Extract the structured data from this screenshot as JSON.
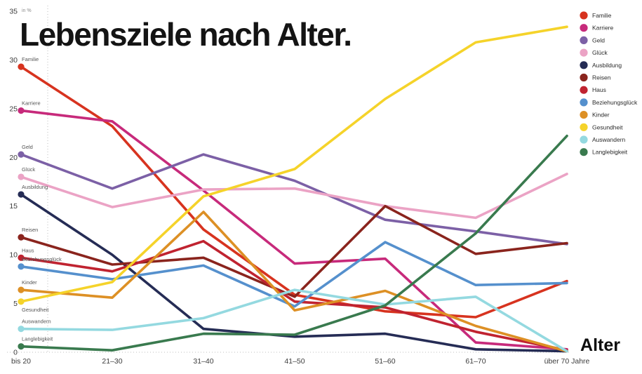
{
  "title": "Lebensziele nach Alter.",
  "chart_data": {
    "type": "line",
    "title": "Lebensziele nach Alter.",
    "xlabel": "Alter",
    "ylabel": "in %",
    "categories": [
      "bis 20",
      "21–30",
      "31–40",
      "41–50",
      "51–60",
      "61–70",
      "über 70 Jahre"
    ],
    "ylim": [
      0,
      35
    ],
    "yticks": [
      0,
      5,
      10,
      15,
      20,
      25,
      30,
      35
    ],
    "grid": "dotted y-axis line and dotted baseline only",
    "legend_position": "top-right",
    "marker": "dot at first point of each line",
    "series": [
      {
        "name": "Familie",
        "color": "#d7331f",
        "values": [
          29.3,
          23.2,
          12.6,
          5.9,
          4.2,
          3.6,
          7.3
        ]
      },
      {
        "name": "Karriere",
        "color": "#c72a7b",
        "values": [
          24.8,
          23.7,
          16.6,
          9.1,
          9.6,
          1.0,
          0.3
        ]
      },
      {
        "name": "Geld",
        "color": "#7c60a6",
        "values": [
          20.3,
          16.8,
          20.3,
          17.6,
          13.6,
          12.4,
          11.1
        ]
      },
      {
        "name": "Glück",
        "color": "#eba3c5",
        "values": [
          18.0,
          14.9,
          16.7,
          16.8,
          15.0,
          13.8,
          18.3
        ]
      },
      {
        "name": "Ausbildung",
        "color": "#252c55",
        "values": [
          16.2,
          10.0,
          2.4,
          1.6,
          1.9,
          0.3,
          0.1
        ]
      },
      {
        "name": "Reisen",
        "color": "#8a241d",
        "values": [
          11.8,
          9.0,
          9.7,
          5.7,
          15.0,
          10.1,
          11.2
        ]
      },
      {
        "name": "Haus",
        "color": "#c02330",
        "values": [
          9.7,
          8.3,
          11.4,
          5.2,
          4.6,
          2.1,
          0.2
        ]
      },
      {
        "name": "Beziehungsglück",
        "color": "#5590cd",
        "values": [
          8.8,
          7.5,
          8.9,
          4.7,
          11.3,
          6.9,
          7.1
        ]
      },
      {
        "name": "Kinder",
        "color": "#dd9025",
        "values": [
          6.4,
          5.6,
          14.4,
          4.3,
          6.3,
          2.7,
          0.1
        ]
      },
      {
        "name": "Gesundheit",
        "color": "#f5d32a",
        "values": [
          5.2,
          7.2,
          16.0,
          18.8,
          26.0,
          31.8,
          33.4
        ]
      },
      {
        "name": "Auswandern",
        "color": "#94d9e0",
        "values": [
          2.4,
          2.3,
          3.5,
          6.4,
          4.9,
          5.7,
          0.1
        ]
      },
      {
        "name": "Langlebigkeit",
        "color": "#397a4e",
        "values": [
          0.6,
          0.2,
          1.9,
          1.8,
          4.8,
          12.2,
          22.2
        ]
      }
    ]
  }
}
